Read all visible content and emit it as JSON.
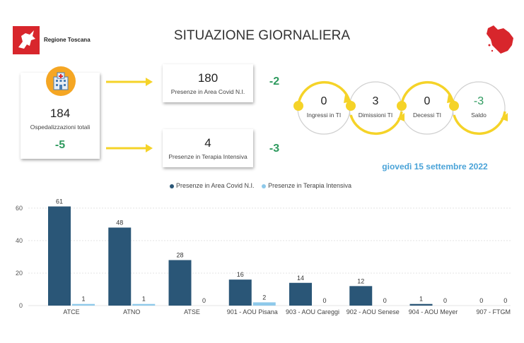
{
  "header": {
    "region_name": "Regione Toscana",
    "title": "SITUAZIONE GIORNALIERA"
  },
  "summary": {
    "total_value": "184",
    "total_label": "Ospedalizzazioni totali",
    "total_delta": "-5",
    "covid_value": "180",
    "covid_label": "Presenze in Area Covid N.I.",
    "covid_delta": "-2",
    "ti_value": "4",
    "ti_label": "Presenze in Terapia Intensiva",
    "ti_delta": "-3"
  },
  "flow": {
    "ingressi_value": "0",
    "ingressi_label": "Ingressi in TI",
    "dimissioni_value": "3",
    "dimissioni_label": "Dimissioni TI",
    "decessi_value": "0",
    "decessi_label": "Decessi TI",
    "saldo_value": "-3",
    "saldo_label": "Saldo"
  },
  "date": "giovedì 15 settembre 2022",
  "colors": {
    "series1": "#2a5677",
    "series2": "#8ec9ea",
    "accent": "#f5d328",
    "delta": "#2e9a5e",
    "date": "#4aa3d8"
  },
  "chart_data": {
    "type": "bar",
    "categories": [
      "ATCE",
      "ATNO",
      "ATSE",
      "901 - AOU Pisana",
      "903 - AOU Careggi",
      "902 - AOU Senese",
      "904 - AOU Meyer",
      "907 - FTGM"
    ],
    "series": [
      {
        "name": "Presenze in Area Covid N.I.",
        "values": [
          61,
          48,
          28,
          16,
          14,
          12,
          1,
          0
        ]
      },
      {
        "name": "Presenze in Terapia Intensiva",
        "values": [
          1,
          1,
          0,
          2,
          0,
          0,
          0,
          0
        ]
      }
    ],
    "yticks": [
      0,
      20,
      40,
      60
    ],
    "ylim": [
      0,
      66
    ],
    "grid": true,
    "legend": "top-center"
  }
}
